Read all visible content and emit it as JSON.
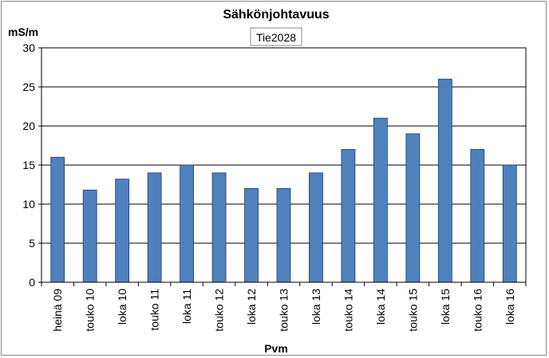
{
  "chart_data": {
    "type": "bar",
    "title": "Sähkönjohtavuus",
    "subtitle": "Tie2028",
    "ylabel": "mS/m",
    "xlabel": "Pvm",
    "ylim": [
      0,
      30
    ],
    "yticks": [
      0,
      5,
      10,
      15,
      20,
      25,
      30
    ],
    "grid": true,
    "bar_color": "#4f81bd",
    "categories": [
      "heinä 09",
      "touko 10",
      "loka 10",
      "touko 11",
      "loka 11",
      "touko 12",
      "loka 12",
      "touko 13",
      "loka 13",
      "touko 14",
      "loka 14",
      "touko 15",
      "loka 15",
      "touko 16",
      "loka 16"
    ],
    "values": [
      16,
      11.8,
      13.2,
      14,
      15,
      14,
      12,
      12,
      14,
      17,
      21,
      19,
      26,
      17,
      15
    ]
  }
}
